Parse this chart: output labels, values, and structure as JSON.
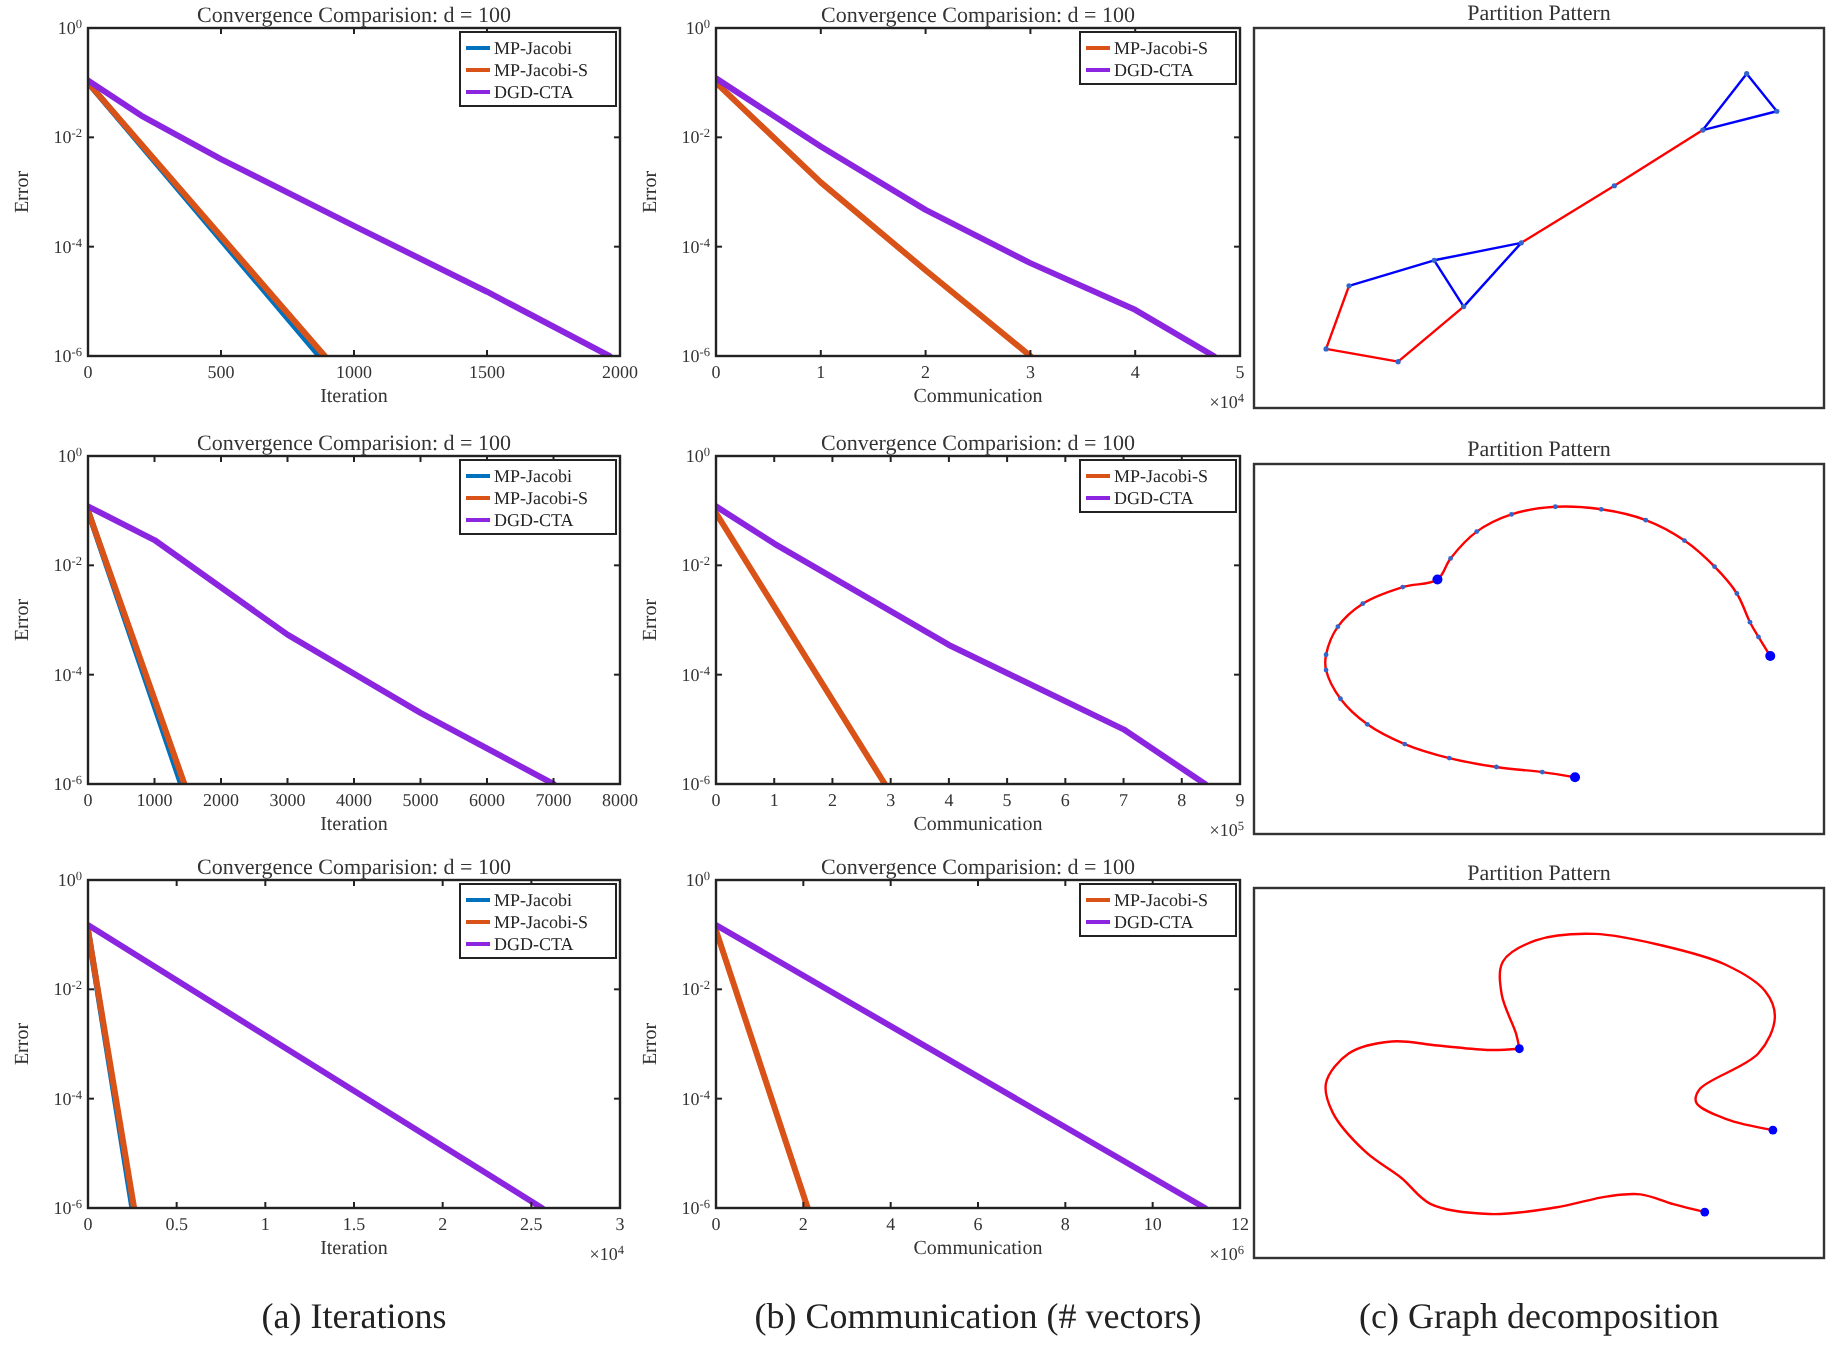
{
  "chart_data": [
    {
      "type": "line",
      "title": "Convergence Comparision: d = 100",
      "xlabel": "Iteration",
      "ylabel": "Error",
      "log": "y",
      "legend": "top right",
      "xlim": [
        0,
        2000
      ],
      "xticks": [
        0,
        500,
        1000,
        1500,
        2000
      ],
      "ylim": [
        1e-06,
        1
      ],
      "yticks": [
        {
          "value": 1,
          "label": "10$^{0}$"
        },
        {
          "value": 0.01,
          "label": "10$^{-2}$"
        },
        {
          "value": 0.0001,
          "label": "10$^{-4}$"
        },
        {
          "value": 1e-06,
          "label": "10$^{-6}$"
        }
      ],
      "series": [
        {
          "name": "MP-Jacobi",
          "color": "#0072bd",
          "x": [
            0,
            870
          ],
          "values": [
            0.1,
            1e-06
          ]
        },
        {
          "name": "MP-Jacobi-S",
          "color": "#d95319",
          "x": [
            0,
            890
          ],
          "values": [
            0.1,
            1e-06
          ]
        },
        {
          "name": "DGD-CTA",
          "color": "#8b25e0",
          "x": [
            0,
            200,
            500,
            1000,
            1500,
            1960
          ],
          "values": [
            0.11,
            0.025,
            0.004,
            0.00024,
            1.5e-05,
            1e-06
          ]
        }
      ]
    },
    {
      "type": "line",
      "title": "Convergence Comparision: d = 100",
      "xlabel": "Communication",
      "ylabel": "Error",
      "log": "y",
      "legend": "top right",
      "xlim": [
        0,
        5
      ],
      "xticks": [
        0,
        1,
        2,
        3,
        4,
        5
      ],
      "ylim": [
        1e-06,
        1
      ],
      "yticks": [
        {
          "value": 1,
          "label": "10$^{0}$"
        },
        {
          "value": 0.01,
          "label": "10$^{-2}$"
        },
        {
          "value": 0.0001,
          "label": "10$^{-4}$"
        },
        {
          "value": 1e-06,
          "label": "10$^{-6}$"
        }
      ],
      "annotations": [
        "×10$^{4}$"
      ],
      "series": [
        {
          "name": "MP-Jacobi-S",
          "color": "#d95319",
          "x": [
            0,
            1,
            2,
            3
          ],
          "values": [
            0.1,
            0.0015,
            3.7e-05,
            1e-06
          ]
        },
        {
          "name": "DGD-CTA",
          "color": "#8b25e0",
          "x": [
            0,
            1,
            2,
            3,
            4,
            4.75
          ],
          "values": [
            0.12,
            0.0068,
            0.00047,
            5e-05,
            7e-06,
            1e-06
          ]
        }
      ]
    },
    {
      "type": "other",
      "title": "Partition Pattern"
    },
    {
      "type": "line",
      "title": "Convergence Comparision: d = 100",
      "xlabel": "Iteration",
      "ylabel": "Error",
      "log": "y",
      "legend": "top right",
      "xlim": [
        0,
        8000
      ],
      "xticks": [
        0,
        1000,
        2000,
        3000,
        4000,
        5000,
        6000,
        7000,
        8000
      ],
      "ylim": [
        1e-06,
        1
      ],
      "yticks": [
        {
          "value": 1,
          "label": "10$^{0}$"
        },
        {
          "value": 0.01,
          "label": "10$^{-2}$"
        },
        {
          "value": 0.0001,
          "label": "10$^{-4}$"
        },
        {
          "value": 1e-06,
          "label": "10$^{-6}$"
        }
      ],
      "series": [
        {
          "name": "MP-Jacobi",
          "color": "#0072bd",
          "x": [
            0,
            1400
          ],
          "values": [
            0.1,
            1e-06
          ]
        },
        {
          "name": "MP-Jacobi-S",
          "color": "#d95319",
          "x": [
            0,
            1450
          ],
          "values": [
            0.1,
            1e-06
          ]
        },
        {
          "name": "DGD-CTA",
          "color": "#8b25e0",
          "x": [
            0,
            1000,
            3000,
            5000,
            7000
          ],
          "values": [
            0.12,
            0.029,
            0.00054,
            2e-05,
            1e-06
          ]
        }
      ]
    },
    {
      "type": "line",
      "title": "Convergence Comparision: d = 100",
      "xlabel": "Communication",
      "ylabel": "Error",
      "log": "y",
      "legend": "top right",
      "xlim": [
        0,
        9
      ],
      "xticks": [
        0,
        1,
        2,
        3,
        4,
        5,
        6,
        7,
        8,
        9
      ],
      "ylim": [
        1e-06,
        1
      ],
      "yticks": [
        {
          "value": 1,
          "label": "10$^{0}$"
        },
        {
          "value": 0.01,
          "label": "10$^{-2}$"
        },
        {
          "value": 0.0001,
          "label": "10$^{-4}$"
        },
        {
          "value": 1e-06,
          "label": "10$^{-6}$"
        }
      ],
      "annotations": [
        "×10$^{5}$"
      ],
      "series": [
        {
          "name": "MP-Jacobi-S",
          "color": "#d95319",
          "x": [
            0,
            2.9
          ],
          "values": [
            0.09,
            1e-06
          ]
        },
        {
          "name": "DGD-CTA",
          "color": "#8b25e0",
          "x": [
            0,
            1,
            4,
            7,
            8.4
          ],
          "values": [
            0.12,
            0.025,
            0.00035,
            1e-05,
            1e-06
          ]
        }
      ]
    },
    {
      "type": "other",
      "title": "Partition Pattern"
    },
    {
      "type": "line",
      "title": "Convergence Comparision: d = 100",
      "xlabel": "Iteration",
      "ylabel": "Error",
      "log": "y",
      "legend": "top right",
      "xlim": [
        0,
        3
      ],
      "xticks": [
        0,
        0.5,
        1,
        1.5,
        2,
        2.5,
        3
      ],
      "ylim": [
        1e-06,
        1
      ],
      "yticks": [
        {
          "value": 1,
          "label": "10$^{0}$"
        },
        {
          "value": 0.01,
          "label": "10$^{-2}$"
        },
        {
          "value": 0.0001,
          "label": "10$^{-4}$"
        },
        {
          "value": 1e-06,
          "label": "10$^{-6}$"
        }
      ],
      "annotations": [
        "×10$^{4}$",
        "(a) Iterations"
      ],
      "series": [
        {
          "name": "MP-Jacobi",
          "color": "#0072bd",
          "x": [
            0,
            0.25
          ],
          "values": [
            0.12,
            1e-06
          ]
        },
        {
          "name": "MP-Jacobi-S",
          "color": "#d95319",
          "x": [
            0,
            0.26
          ],
          "values": [
            0.12,
            1e-06
          ]
        },
        {
          "name": "DGD-CTA",
          "color": "#8b25e0",
          "x": [
            0,
            2.56
          ],
          "values": [
            0.15,
            1e-06
          ]
        }
      ]
    },
    {
      "type": "line",
      "title": "Convergence Comparision: d = 100",
      "xlabel": "Communication",
      "ylabel": "Error",
      "log": "y",
      "legend": "top right",
      "xlim": [
        0,
        12
      ],
      "xticks": [
        0,
        2,
        4,
        6,
        8,
        10,
        12
      ],
      "ylim": [
        1e-06,
        1
      ],
      "yticks": [
        {
          "value": 1,
          "label": "10$^{0}$"
        },
        {
          "value": 0.01,
          "label": "10$^{-2}$"
        },
        {
          "value": 0.0001,
          "label": "10$^{-4}$"
        },
        {
          "value": 1e-06,
          "label": "10$^{-6}$"
        }
      ],
      "annotations": [
        "×10$^{6}$",
        "(b) Communication (# vectors)"
      ],
      "series": [
        {
          "name": "MP-Jacobi-S",
          "color": "#d95319",
          "x": [
            0,
            2.1
          ],
          "values": [
            0.12,
            1e-06
          ]
        },
        {
          "name": "DGD-CTA",
          "color": "#8b25e0",
          "x": [
            0,
            11.2
          ],
          "values": [
            0.15,
            1e-06
          ]
        }
      ]
    },
    {
      "type": "other",
      "title": "Partition Pattern",
      "annotations": [
        "(c) Graph decomposition"
      ]
    }
  ]
}
